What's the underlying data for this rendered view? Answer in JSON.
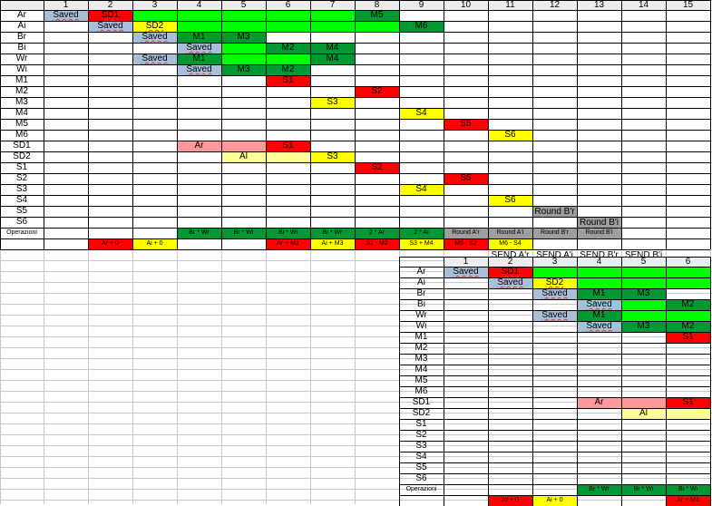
{
  "colors": {
    "gray": "#a9bfd9",
    "red": "#ff0000",
    "yellow": "#ffff00",
    "lime": "#00ff00",
    "green": "#009933",
    "pink": "#ff9999",
    "lightyellow": "#ffff99",
    "midgray": "#9e9e9e",
    "header": "#ececec"
  },
  "top": {
    "col_headers": [
      "1",
      "2",
      "3",
      "4",
      "5",
      "6",
      "7",
      "8",
      "9",
      "10",
      "11",
      "12",
      "13",
      "14",
      "15"
    ],
    "row_labels": [
      "Ar",
      "Ai",
      "Br",
      "Bi",
      "Wr",
      "Wi",
      "M1",
      "M2",
      "M3",
      "M4",
      "M5",
      "M6",
      "SD1",
      "SD2",
      "S1",
      "S2",
      "S3",
      "S4",
      "S5",
      "S6",
      "Operazioni"
    ],
    "cells": [
      {
        "r": 0,
        "c": 1,
        "cs": 1,
        "text": "Saved",
        "bg": "gray",
        "cls": "under"
      },
      {
        "r": 0,
        "c": 2,
        "cs": 1,
        "text": "SD1",
        "bg": "red",
        "cls": "under"
      },
      {
        "r": 0,
        "c": 3,
        "cs": 1,
        "text": "",
        "bg": "lime"
      },
      {
        "r": 0,
        "c": 4,
        "cs": 1,
        "text": "",
        "bg": "lime"
      },
      {
        "r": 0,
        "c": 5,
        "cs": 1,
        "text": "",
        "bg": "lime"
      },
      {
        "r": 0,
        "c": 6,
        "cs": 1,
        "text": "",
        "bg": "lime"
      },
      {
        "r": 0,
        "c": 7,
        "cs": 1,
        "text": "",
        "bg": "lime"
      },
      {
        "r": 0,
        "c": 8,
        "cs": 1,
        "text": "M5",
        "bg": "green"
      },
      {
        "r": 1,
        "c": 2,
        "cs": 1,
        "text": "Saved",
        "bg": "gray",
        "cls": "under"
      },
      {
        "r": 1,
        "c": 3,
        "cs": 1,
        "text": "SD2",
        "bg": "yellow",
        "cls": "under"
      },
      {
        "r": 1,
        "c": 4,
        "cs": 1,
        "text": "",
        "bg": "lime"
      },
      {
        "r": 1,
        "c": 5,
        "cs": 1,
        "text": "",
        "bg": "lime"
      },
      {
        "r": 1,
        "c": 6,
        "cs": 1,
        "text": "",
        "bg": "lime"
      },
      {
        "r": 1,
        "c": 7,
        "cs": 1,
        "text": "",
        "bg": "lime"
      },
      {
        "r": 1,
        "c": 8,
        "cs": 1,
        "text": "",
        "bg": "lime"
      },
      {
        "r": 1,
        "c": 9,
        "cs": 1,
        "text": "M6",
        "bg": "green"
      },
      {
        "r": 2,
        "c": 3,
        "cs": 1,
        "text": "Saved",
        "bg": "gray",
        "cls": "under"
      },
      {
        "r": 2,
        "c": 4,
        "cs": 1,
        "text": "M1",
        "bg": "green"
      },
      {
        "r": 2,
        "c": 5,
        "cs": 1,
        "text": "M3",
        "bg": "green"
      },
      {
        "r": 3,
        "c": 4,
        "cs": 1,
        "text": "Saved",
        "bg": "gray",
        "cls": "under"
      },
      {
        "r": 3,
        "c": 5,
        "cs": 1,
        "text": "",
        "bg": "lime"
      },
      {
        "r": 3,
        "c": 6,
        "cs": 1,
        "text": "M2",
        "bg": "green"
      },
      {
        "r": 3,
        "c": 7,
        "cs": 1,
        "text": "M4",
        "bg": "green"
      },
      {
        "r": 4,
        "c": 3,
        "cs": 1,
        "text": "Saved",
        "bg": "gray",
        "cls": "under"
      },
      {
        "r": 4,
        "c": 4,
        "cs": 1,
        "text": "M1",
        "bg": "green"
      },
      {
        "r": 4,
        "c": 5,
        "cs": 1,
        "text": "",
        "bg": "lime"
      },
      {
        "r": 4,
        "c": 6,
        "cs": 1,
        "text": "",
        "bg": "lime"
      },
      {
        "r": 4,
        "c": 7,
        "cs": 1,
        "text": "M4",
        "bg": "green"
      },
      {
        "r": 5,
        "c": 4,
        "cs": 1,
        "text": "Saved",
        "bg": "gray",
        "cls": "under"
      },
      {
        "r": 5,
        "c": 5,
        "cs": 1,
        "text": "M3",
        "bg": "green"
      },
      {
        "r": 5,
        "c": 6,
        "cs": 1,
        "text": "M2",
        "bg": "green"
      },
      {
        "r": 6,
        "c": 6,
        "cs": 1,
        "text": "S1",
        "bg": "red"
      },
      {
        "r": 7,
        "c": 8,
        "cs": 1,
        "text": "S2",
        "bg": "red"
      },
      {
        "r": 8,
        "c": 7,
        "cs": 1,
        "text": "S3",
        "bg": "yellow"
      },
      {
        "r": 9,
        "c": 9,
        "cs": 1,
        "text": "S4",
        "bg": "yellow"
      },
      {
        "r": 10,
        "c": 10,
        "cs": 1,
        "text": "S5",
        "bg": "red"
      },
      {
        "r": 11,
        "c": 11,
        "cs": 1,
        "text": "S6",
        "bg": "yellow"
      },
      {
        "r": 12,
        "c": 4,
        "cs": 1,
        "text": "Ar",
        "bg": "pink"
      },
      {
        "r": 12,
        "c": 5,
        "cs": 1,
        "text": "",
        "bg": "pink"
      },
      {
        "r": 12,
        "c": 6,
        "cs": 1,
        "text": "S1",
        "bg": "red"
      },
      {
        "r": 13,
        "c": 5,
        "cs": 1,
        "text": "Al",
        "bg": "lightyellow"
      },
      {
        "r": 13,
        "c": 6,
        "cs": 1,
        "text": "",
        "bg": "lightyellow"
      },
      {
        "r": 13,
        "c": 7,
        "cs": 1,
        "text": "S3",
        "bg": "yellow"
      },
      {
        "r": 14,
        "c": 8,
        "cs": 1,
        "text": "S2",
        "bg": "red"
      },
      {
        "r": 15,
        "c": 10,
        "cs": 1,
        "text": "S5",
        "bg": "red"
      },
      {
        "r": 16,
        "c": 9,
        "cs": 1,
        "text": "S4",
        "bg": "yellow"
      },
      {
        "r": 17,
        "c": 11,
        "cs": 1,
        "text": "S6",
        "bg": "yellow"
      },
      {
        "r": 18,
        "c": 12,
        "cs": 1,
        "text": "Round B'r",
        "bg": "midgray",
        "cls": "tall"
      },
      {
        "r": 19,
        "c": 13,
        "cs": 1,
        "text": "Round B'i",
        "bg": "midgray",
        "cls": "tall"
      },
      {
        "r": 20,
        "c": 4,
        "cs": 1,
        "text": "Br * Wr",
        "bg": "green",
        "cls": "small"
      },
      {
        "r": 20,
        "c": 5,
        "cs": 1,
        "text": "Br * Wi",
        "bg": "green",
        "cls": "small"
      },
      {
        "r": 20,
        "c": 6,
        "cs": 1,
        "text": "Bi * Wi",
        "bg": "green",
        "cls": "small"
      },
      {
        "r": 20,
        "c": 7,
        "cs": 1,
        "text": "Bi * Wr",
        "bg": "green",
        "cls": "small"
      },
      {
        "r": 20,
        "c": 8,
        "cs": 1,
        "text": "2 * Ar",
        "bg": "green",
        "cls": "small"
      },
      {
        "r": 20,
        "c": 9,
        "cs": 1,
        "text": "2 * Ai",
        "bg": "green",
        "cls": "small"
      },
      {
        "r": 20,
        "c": 10,
        "cs": 1,
        "text": "Round A'r",
        "bg": "midgray",
        "cls": "small"
      },
      {
        "r": 20,
        "c": 11,
        "cs": 1,
        "text": "Round A'i",
        "bg": "midgray",
        "cls": "small"
      },
      {
        "r": 20,
        "c": 12,
        "cs": 1,
        "text": "Round B'r",
        "bg": "midgray",
        "cls": "small"
      },
      {
        "r": 20,
        "c": 13,
        "cs": 1,
        "text": "Round B'i",
        "bg": "midgray",
        "cls": "small"
      },
      {
        "r": 21,
        "c": 2,
        "cs": 1,
        "text": "Ar + 0",
        "bg": "red",
        "cls": "small"
      },
      {
        "r": 21,
        "c": 3,
        "cs": 1,
        "text": "Ai + 0",
        "bg": "yellow",
        "cls": "small"
      },
      {
        "r": 21,
        "c": 6,
        "cs": 1,
        "text": "Ar + M1",
        "bg": "red",
        "cls": "small"
      },
      {
        "r": 21,
        "c": 7,
        "cs": 1,
        "text": "Ai + M3",
        "bg": "yellow",
        "cls": "small"
      },
      {
        "r": 21,
        "c": 8,
        "cs": 1,
        "text": "S1 - M2",
        "bg": "red",
        "cls": "small"
      },
      {
        "r": 21,
        "c": 9,
        "cs": 1,
        "text": "S3 + M4",
        "bg": "yellow",
        "cls": "small"
      },
      {
        "r": 21,
        "c": 10,
        "cs": 1,
        "text": "M5 - S2",
        "bg": "red",
        "cls": "small"
      },
      {
        "r": 21,
        "c": 11,
        "cs": 1,
        "text": "M6 - S4",
        "bg": "yellow",
        "cls": "small"
      },
      {
        "r": 22,
        "c": 11,
        "cs": 1,
        "text": "SEND A'r",
        "bg": "",
        "cls": "tall"
      },
      {
        "r": 22,
        "c": 12,
        "cs": 1,
        "text": "SEND A'i",
        "bg": "",
        "cls": "tall"
      },
      {
        "r": 22,
        "c": 13,
        "cs": 1,
        "text": "SEND B'r",
        "bg": "",
        "cls": "tall"
      },
      {
        "r": 22,
        "c": 14,
        "cs": 1,
        "text": "SEND B'i",
        "bg": "",
        "cls": "tall"
      }
    ]
  },
  "bottom": {
    "col_headers": [
      "1",
      "2",
      "3",
      "4",
      "5",
      "6"
    ],
    "row_labels": [
      "Ar",
      "Ai",
      "Br",
      "Bi",
      "Wr",
      "Wi",
      "M1",
      "M2",
      "M3",
      "M4",
      "M5",
      "M6",
      "SD1",
      "SD2",
      "S1",
      "S2",
      "S3",
      "S4",
      "S5",
      "S6",
      "Operazioni"
    ],
    "cells": [
      {
        "r": 0,
        "c": 1,
        "text": "Saved",
        "bg": "gray",
        "cls": "under"
      },
      {
        "r": 0,
        "c": 2,
        "text": "SD1",
        "bg": "red",
        "cls": "under"
      },
      {
        "r": 0,
        "c": 3,
        "text": "",
        "bg": "lime"
      },
      {
        "r": 0,
        "c": 4,
        "text": "",
        "bg": "lime"
      },
      {
        "r": 0,
        "c": 5,
        "text": "",
        "bg": "lime"
      },
      {
        "r": 0,
        "c": 6,
        "text": "",
        "bg": "lime"
      },
      {
        "r": 1,
        "c": 2,
        "text": "Saved",
        "bg": "gray",
        "cls": "under"
      },
      {
        "r": 1,
        "c": 3,
        "text": "SD2",
        "bg": "yellow",
        "cls": "under"
      },
      {
        "r": 1,
        "c": 4,
        "text": "",
        "bg": "lime"
      },
      {
        "r": 1,
        "c": 5,
        "text": "",
        "bg": "lime"
      },
      {
        "r": 1,
        "c": 6,
        "text": "",
        "bg": "lime"
      },
      {
        "r": 2,
        "c": 3,
        "text": "Saved",
        "bg": "gray",
        "cls": "under"
      },
      {
        "r": 2,
        "c": 4,
        "text": "M1",
        "bg": "green"
      },
      {
        "r": 2,
        "c": 5,
        "text": "M3",
        "bg": "green"
      },
      {
        "r": 3,
        "c": 4,
        "text": "Saved",
        "bg": "gray",
        "cls": "under"
      },
      {
        "r": 3,
        "c": 5,
        "text": "",
        "bg": "lime"
      },
      {
        "r": 3,
        "c": 6,
        "text": "M2",
        "bg": "green"
      },
      {
        "r": 4,
        "c": 3,
        "text": "Saved",
        "bg": "gray",
        "cls": "under"
      },
      {
        "r": 4,
        "c": 4,
        "text": "M1",
        "bg": "green"
      },
      {
        "r": 4,
        "c": 5,
        "text": "",
        "bg": "lime"
      },
      {
        "r": 4,
        "c": 6,
        "text": "",
        "bg": "lime"
      },
      {
        "r": 5,
        "c": 4,
        "text": "Saved",
        "bg": "gray",
        "cls": "under"
      },
      {
        "r": 5,
        "c": 5,
        "text": "M3",
        "bg": "green"
      },
      {
        "r": 5,
        "c": 6,
        "text": "M2",
        "bg": "green"
      },
      {
        "r": 6,
        "c": 6,
        "text": "S1",
        "bg": "red"
      },
      {
        "r": 12,
        "c": 4,
        "text": "Ar",
        "bg": "pink"
      },
      {
        "r": 12,
        "c": 5,
        "text": "",
        "bg": "pink"
      },
      {
        "r": 12,
        "c": 6,
        "text": "S1",
        "bg": "red"
      },
      {
        "r": 13,
        "c": 5,
        "text": "Al",
        "bg": "lightyellow"
      },
      {
        "r": 13,
        "c": 6,
        "text": "",
        "bg": "lightyellow"
      },
      {
        "r": 20,
        "c": 4,
        "text": "Br * Wr",
        "bg": "green",
        "cls": "small"
      },
      {
        "r": 20,
        "c": 5,
        "text": "Br * Wi",
        "bg": "green",
        "cls": "small"
      },
      {
        "r": 20,
        "c": 6,
        "text": "Bi * Wi",
        "bg": "green",
        "cls": "small"
      },
      {
        "r": 21,
        "c": 2,
        "text": "Ar + 0",
        "bg": "red",
        "cls": "small"
      },
      {
        "r": 21,
        "c": 3,
        "text": "Ai + 0",
        "bg": "yellow",
        "cls": "small"
      },
      {
        "r": 21,
        "c": 6,
        "text": "Ar + M1",
        "bg": "red",
        "cls": "small"
      }
    ]
  }
}
